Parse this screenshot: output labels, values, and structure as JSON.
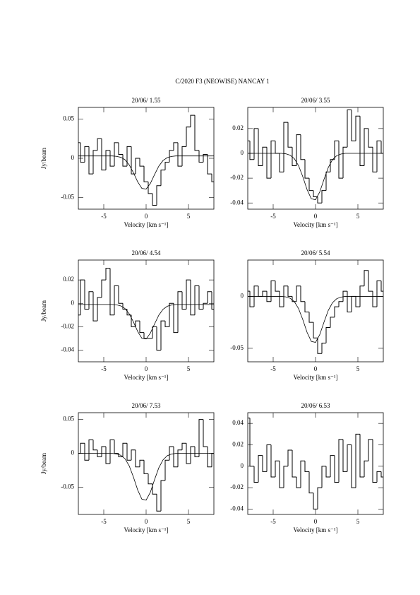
{
  "suptitle": "C/2020 F3 (NEOWISE)   NANCAY      1",
  "chart_data": [
    {
      "type": "step",
      "title": "20/06/ 1.55",
      "x_label": "Velocity [km s⁻¹]",
      "y_label": "Jy/beam",
      "color": "#000000",
      "x": [
        -8,
        -7.5,
        -7,
        -6.5,
        -6,
        -5.5,
        -5,
        -4.5,
        -4,
        -3.5,
        -3,
        -2.5,
        -2,
        -1.5,
        -1,
        -0.5,
        0,
        0.5,
        1,
        1.5,
        2,
        2.5,
        3,
        3.5,
        4,
        4.5,
        5,
        5.5,
        6,
        6.5,
        7,
        7.5,
        8
      ],
      "values": [
        0.02,
        -0.005,
        0.015,
        -0.02,
        0.01,
        0.025,
        -0.015,
        0.01,
        -0.01,
        0.02,
        0.005,
        -0.01,
        0.015,
        -0.02,
        0.0,
        -0.01,
        -0.03,
        -0.045,
        -0.06,
        -0.035,
        -0.015,
        -0.005,
        0.01,
        0.02,
        -0.01,
        0.015,
        0.04,
        0.055,
        0.01,
        -0.005,
        0.005,
        -0.02,
        -0.03
      ],
      "fit": [
        0.003,
        0.003,
        0.003,
        0.003,
        0.003,
        0.003,
        0.003,
        0.003,
        0.003,
        0.0025,
        0.0013,
        -0.0018,
        -0.0083,
        -0.0184,
        -0.03,
        -0.0385,
        -0.0393,
        -0.0322,
        -0.0207,
        -0.01,
        -0.0028,
        0.0009,
        0.0024,
        0.003,
        0.003,
        0.003,
        0.003,
        0.003,
        0.003,
        0.003,
        0.003,
        0.003,
        0.003
      ],
      "xlim": [
        -8,
        8
      ],
      "xticks": [
        -5,
        0,
        5
      ],
      "ylim": [
        -0.065,
        0.065
      ],
      "yticks": [
        -0.05,
        0,
        0.05
      ]
    },
    {
      "type": "step",
      "title": "20/06/ 3.55",
      "x_label": "Velocity [km s⁻¹]",
      "color": "#000000",
      "x": [
        -8,
        -7.5,
        -7,
        -6.5,
        -6,
        -5.5,
        -5,
        -4.5,
        -4,
        -3.5,
        -3,
        -2.5,
        -2,
        -1.5,
        -1,
        -0.5,
        0,
        0.5,
        1,
        1.5,
        2,
        2.5,
        3,
        3.5,
        4,
        4.5,
        5,
        5.5,
        6,
        6.5,
        7,
        7.5,
        8
      ],
      "values": [
        0.01,
        -0.005,
        0.02,
        -0.01,
        0.005,
        -0.02,
        0.01,
        0.0,
        -0.015,
        0.025,
        0.005,
        -0.01,
        0.015,
        -0.005,
        -0.02,
        -0.03,
        -0.035,
        -0.04,
        -0.03,
        -0.015,
        -0.005,
        0.01,
        -0.02,
        0.005,
        0.035,
        0.01,
        0.03,
        -0.01,
        0.02,
        0.005,
        -0.015,
        0.01,
        0.0
      ],
      "fit": [
        0,
        0,
        0,
        0,
        0,
        0,
        0,
        0,
        0,
        -0.0004,
        -0.0015,
        -0.0043,
        -0.01,
        -0.0189,
        -0.0292,
        -0.0366,
        -0.0374,
        -0.0311,
        -0.021,
        -0.0115,
        -0.0051,
        -0.0019,
        -0.0006,
        0,
        0,
        0,
        0,
        0,
        0,
        0,
        0,
        0,
        0
      ],
      "xlim": [
        -8,
        8
      ],
      "xticks": [
        -5,
        0,
        5
      ],
      "ylim": [
        -0.045,
        0.037
      ],
      "yticks": [
        -0.04,
        -0.02,
        0,
        0.02
      ]
    },
    {
      "type": "step",
      "title": "20/06/ 4.54",
      "x_label": "Velocity [km s⁻¹]",
      "y_label": "Jy/beam",
      "color": "#000000",
      "x": [
        -8,
        -7.5,
        -7,
        -6.5,
        -6,
        -5.5,
        -5,
        -4.5,
        -4,
        -3.5,
        -3,
        -2.5,
        -2,
        -1.5,
        -1,
        -0.5,
        0,
        0.5,
        1,
        1.5,
        2,
        2.5,
        3,
        3.5,
        4,
        4.5,
        5,
        5.5,
        6,
        6.5,
        7,
        7.5,
        8
      ],
      "values": [
        -0.01,
        0.02,
        -0.005,
        0.01,
        -0.015,
        0.005,
        0.02,
        0.03,
        -0.01,
        0.015,
        0.0,
        -0.005,
        -0.01,
        -0.02,
        -0.015,
        -0.025,
        -0.03,
        -0.03,
        -0.02,
        -0.04,
        -0.015,
        -0.02,
        0.0,
        -0.025,
        0.01,
        -0.005,
        0.02,
        -0.01,
        0.015,
        -0.005,
        0.0,
        0.01,
        -0.005
      ],
      "fit": [
        -0.001,
        -0.001,
        -0.001,
        -0.001,
        -0.001,
        -0.001,
        -0.001,
        -0.001,
        -0.001,
        -0.0013,
        -0.0022,
        -0.0044,
        -0.0089,
        -0.0159,
        -0.024,
        -0.0299,
        -0.0305,
        -0.0255,
        -0.0176,
        -0.0101,
        -0.0051,
        -0.0025,
        -0.0014,
        -0.001,
        -0.001,
        -0.001,
        -0.001,
        -0.001,
        -0.001,
        -0.001,
        -0.001,
        -0.001,
        -0.001
      ],
      "xlim": [
        -8,
        8
      ],
      "xticks": [
        -5,
        0,
        5
      ],
      "ylim": [
        -0.05,
        0.037
      ],
      "yticks": [
        -0.04,
        -0.02,
        0,
        0.02
      ]
    },
    {
      "type": "step",
      "title": "20/06/ 5.54",
      "x_label": "Velocity [km s⁻¹]",
      "color": "#000000",
      "x": [
        -8,
        -7.5,
        -7,
        -6.5,
        -6,
        -5.5,
        -5,
        -4.5,
        -4,
        -3.5,
        -3,
        -2.5,
        -2,
        -1.5,
        -1,
        -0.5,
        0,
        0.5,
        1,
        1.5,
        2,
        2.5,
        3,
        3.5,
        4,
        4.5,
        5,
        5.5,
        6,
        6.5,
        7,
        7.5,
        8
      ],
      "values": [
        0.005,
        -0.01,
        0.01,
        0.0,
        0.005,
        -0.005,
        0.015,
        0.005,
        -0.01,
        0.01,
        0.0,
        -0.005,
        0.01,
        -0.005,
        -0.015,
        -0.025,
        -0.04,
        -0.055,
        -0.045,
        -0.03,
        -0.02,
        -0.01,
        -0.005,
        0.005,
        -0.015,
        0.0,
        -0.01,
        0.01,
        0.025,
        0.005,
        -0.01,
        0.015,
        0.005
      ],
      "fit": [
        0,
        0,
        0,
        0,
        0,
        0,
        0,
        0,
        0,
        -0.0005,
        -0.0018,
        -0.005,
        -0.0118,
        -0.0224,
        -0.0346,
        -0.0434,
        -0.0443,
        -0.0368,
        -0.0248,
        -0.0136,
        -0.0061,
        -0.0022,
        -0.0007,
        0,
        0,
        0,
        0,
        0,
        0,
        0,
        0,
        0,
        0
      ],
      "xlim": [
        -8,
        8
      ],
      "xticks": [
        -5,
        0,
        5
      ],
      "ylim": [
        -0.063,
        0.035
      ],
      "yticks": [
        -0.05,
        0
      ]
    },
    {
      "type": "step",
      "title": "20/06/ 7.53",
      "x_label": "Velocity [km s⁻¹]",
      "y_label": "Jy/beam",
      "color": "#000000",
      "x": [
        -8,
        -7.5,
        -7,
        -6.5,
        -6,
        -5.5,
        -5,
        -4.5,
        -4,
        -3.5,
        -3,
        -2.5,
        -2,
        -1.5,
        -1,
        -0.5,
        0,
        0.5,
        1,
        1.5,
        2,
        2.5,
        3,
        3.5,
        4,
        4.5,
        5,
        5.5,
        6,
        6.5,
        7,
        7.5,
        8
      ],
      "values": [
        0.0,
        0.015,
        -0.01,
        0.02,
        0.005,
        -0.005,
        0.01,
        -0.015,
        0.02,
        0.0,
        -0.005,
        0.015,
        -0.01,
        0.005,
        -0.02,
        -0.01,
        -0.03,
        -0.045,
        -0.06,
        -0.085,
        -0.04,
        -0.01,
        0.01,
        -0.02,
        0.005,
        0.015,
        -0.015,
        0.01,
        -0.005,
        0.05,
        0.01,
        -0.02,
        0.0
      ],
      "fit": [
        0,
        0,
        0,
        0,
        0,
        0,
        0,
        0,
        0,
        -0.0008,
        -0.0027,
        -0.0078,
        -0.0183,
        -0.0348,
        -0.0538,
        -0.0675,
        -0.0689,
        -0.0573,
        -0.0386,
        -0.0212,
        -0.0095,
        -0.0034,
        -0.001,
        0,
        0,
        0,
        0,
        0,
        0,
        0,
        0,
        0,
        0
      ],
      "xlim": [
        -8,
        8
      ],
      "xticks": [
        -5,
        0,
        5
      ],
      "ylim": [
        -0.09,
        0.06
      ],
      "yticks": [
        -0.05,
        0,
        0.05
      ]
    },
    {
      "type": "step",
      "title": "20/06/ 6.53",
      "x_label": "Velocity [km s⁻¹]",
      "color": "#000000",
      "x": [
        -8,
        -7.5,
        -7,
        -6.5,
        -6,
        -5.5,
        -5,
        -4.5,
        -4,
        -3.5,
        -3,
        -2.5,
        -2,
        -1.5,
        -1,
        -0.5,
        0,
        0.5,
        1,
        1.5,
        2,
        2.5,
        3,
        3.5,
        4,
        4.5,
        5,
        5.5,
        6,
        6.5,
        7,
        7.5,
        8
      ],
      "values": [
        0.045,
        0.0,
        -0.015,
        0.01,
        -0.005,
        0.02,
        -0.01,
        0.005,
        -0.02,
        0.0,
        0.015,
        -0.01,
        -0.02,
        0.005,
        -0.005,
        -0.025,
        -0.04,
        -0.02,
        0.0,
        -0.01,
        0.01,
        -0.015,
        0.025,
        -0.005,
        0.02,
        -0.02,
        0.03,
        -0.01,
        0.005,
        0.025,
        -0.015,
        -0.005,
        -0.01
      ],
      "xlim": [
        -8,
        8
      ],
      "xticks": [
        -5,
        0,
        5
      ],
      "ylim": [
        -0.045,
        0.05
      ],
      "yticks": [
        -0.04,
        -0.02,
        0,
        0.02,
        0.04
      ]
    }
  ]
}
